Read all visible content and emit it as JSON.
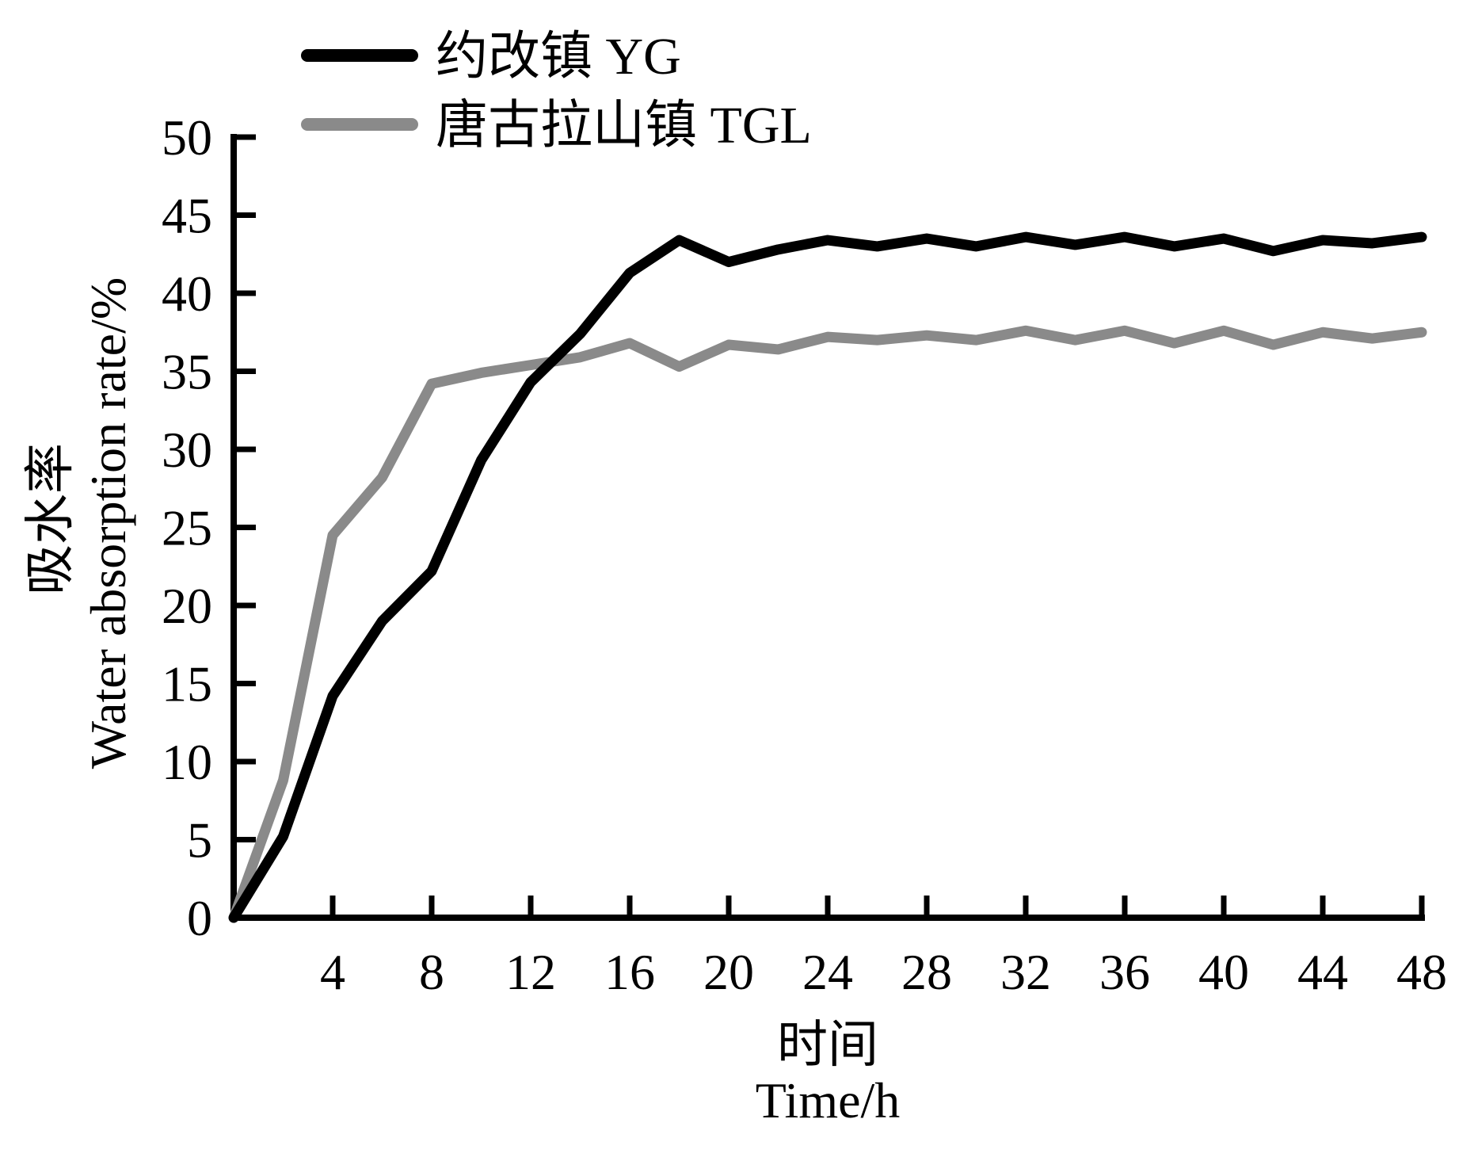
{
  "figure": {
    "background": "#ffffff",
    "axis_color": "#000000"
  },
  "legend": {
    "position": "top-left",
    "items": [
      {
        "label": "约改镇 YG",
        "color": "#000000"
      },
      {
        "label": "唐古拉山镇 TGL",
        "color": "#8a8a8a"
      }
    ]
  },
  "chart_data": {
    "type": "line",
    "title": "",
    "xlabel_cn": "时间",
    "xlabel_en": "Time/h",
    "ylabel_cn": "吸水率",
    "ylabel_en": "Water absorption rate/%",
    "xlim": [
      0,
      48
    ],
    "ylim": [
      0,
      50
    ],
    "x_ticks": [
      4,
      8,
      12,
      16,
      20,
      24,
      28,
      32,
      36,
      40,
      44,
      48
    ],
    "y_ticks": [
      0,
      5,
      10,
      15,
      20,
      25,
      30,
      35,
      40,
      45,
      50
    ],
    "grid": false,
    "legend_position": "top-left",
    "x": [
      0,
      2,
      4,
      6,
      8,
      10,
      12,
      14,
      16,
      18,
      20,
      22,
      24,
      26,
      28,
      30,
      32,
      34,
      36,
      38,
      40,
      42,
      44,
      46,
      48
    ],
    "series": [
      {
        "name": "约改镇 YG",
        "color": "#000000",
        "line_width": 13,
        "values": [
          0,
          5.2,
          14.2,
          19.0,
          22.2,
          29.3,
          34.3,
          37.4,
          41.3,
          43.4,
          42.0,
          42.8,
          43.4,
          43.0,
          43.5,
          43.0,
          43.6,
          43.1,
          43.6,
          43.0,
          43.5,
          42.7,
          43.4,
          43.2,
          43.6
        ]
      },
      {
        "name": "唐古拉山镇 TGL",
        "color": "#8a8a8a",
        "line_width": 13,
        "values": [
          0,
          8.8,
          24.5,
          28.2,
          34.2,
          34.9,
          35.4,
          35.9,
          36.8,
          35.3,
          36.7,
          36.4,
          37.2,
          37.0,
          37.3,
          37.0,
          37.6,
          37.0,
          37.6,
          36.8,
          37.6,
          36.7,
          37.5,
          37.1,
          37.5
        ]
      }
    ]
  }
}
